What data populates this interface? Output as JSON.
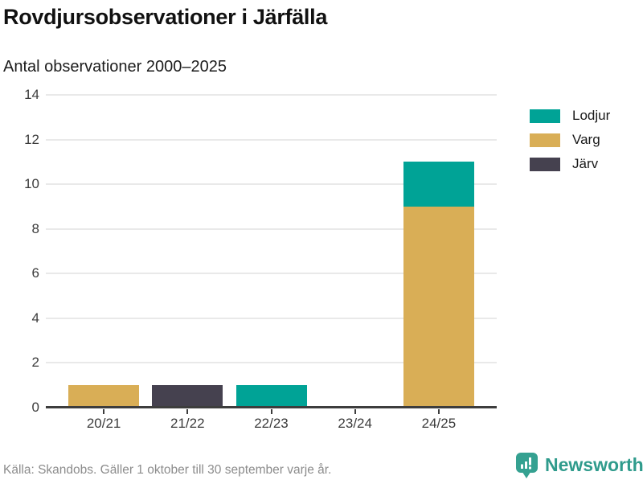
{
  "chart_data": {
    "type": "bar",
    "stacked": true,
    "title": "Rovdjursobservationer i Järfälla",
    "subtitle": "Antal observationer 2000–2025",
    "categories": [
      "20/21",
      "21/22",
      "22/23",
      "23/24",
      "24/25"
    ],
    "series": [
      {
        "name": "Lodjur",
        "color": "#00a396",
        "values": [
          0,
          0,
          1,
          0,
          2
        ]
      },
      {
        "name": "Varg",
        "color": "#d9ae56",
        "values": [
          1,
          0,
          0,
          0,
          9
        ]
      },
      {
        "name": "Järv",
        "color": "#45414f",
        "values": [
          0,
          1,
          0,
          0,
          0
        ]
      }
    ],
    "ylim": [
      0,
      14
    ],
    "yticks": [
      0,
      2,
      4,
      6,
      8,
      10,
      12,
      14
    ],
    "xlabel": "",
    "ylabel": "",
    "grid": true,
    "legend_position": "right"
  },
  "footer": {
    "source": "Källa: Skandobs. Gäller 1 oktober till 30 september varje år.",
    "brand": "Newsworthy"
  },
  "colors": {
    "lodjur": "#00a396",
    "varg": "#d9ae56",
    "jarv": "#45414f",
    "axis": "#3d3d3d",
    "grid": "#e9e9e9",
    "brand_teal": "#2f9b8c",
    "title_text": "#111111",
    "muted_text": "#8c8c8c"
  },
  "icons": {
    "brand_icon": "newsworthy-speech-bubble-bar-chart"
  }
}
